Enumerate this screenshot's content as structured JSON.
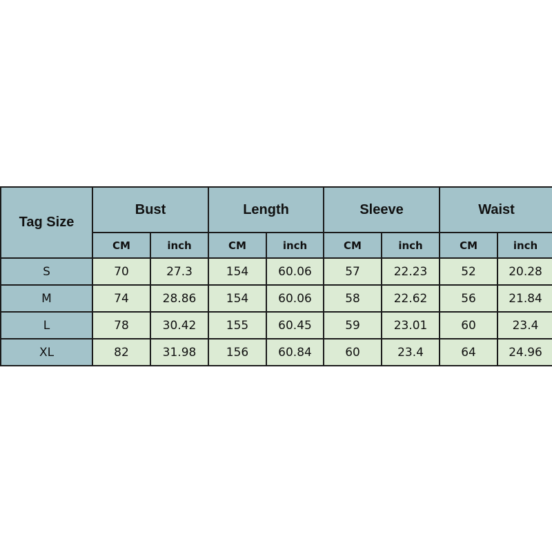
{
  "table": {
    "corner": "Tag Size",
    "groups": [
      "Bust",
      "Length",
      "Sleeve",
      "Waist"
    ],
    "units": [
      "CM",
      "inch"
    ],
    "rows": [
      {
        "size": "S",
        "values": [
          "70",
          "27.3",
          "154",
          "60.06",
          "57",
          "22.23",
          "52",
          "20.28"
        ]
      },
      {
        "size": "M",
        "values": [
          "74",
          "28.86",
          "154",
          "60.06",
          "58",
          "22.62",
          "56",
          "21.84"
        ]
      },
      {
        "size": "L",
        "values": [
          "78",
          "30.42",
          "155",
          "60.45",
          "59",
          "23.01",
          "60",
          "23.4"
        ]
      },
      {
        "size": "XL",
        "values": [
          "82",
          "31.98",
          "156",
          "60.84",
          "60",
          "23.4",
          "64",
          "24.96"
        ]
      }
    ]
  },
  "colors": {
    "header_bg": "#a3c3ca",
    "cell_bg": "#dcebd4",
    "border": "#1a1a1a"
  }
}
